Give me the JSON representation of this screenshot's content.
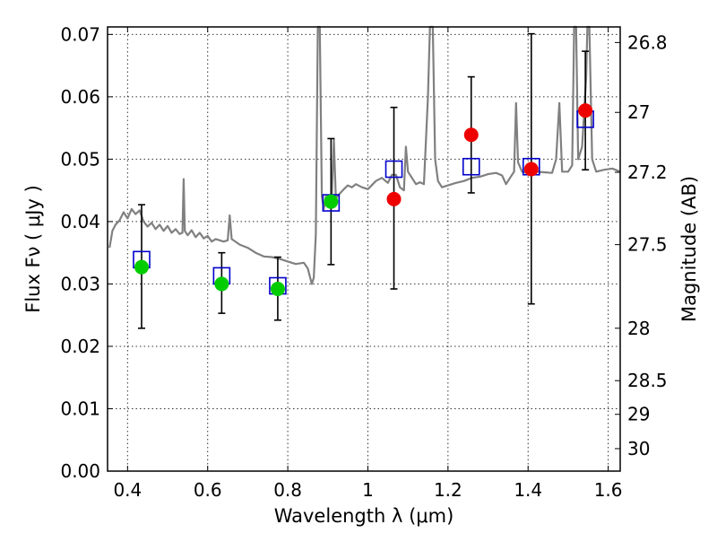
{
  "chart_data": {
    "type": "scatter",
    "title": "",
    "xlabel": "Wavelength  λ (μm)",
    "ylabel": "Flux  Fν  ( μJy )",
    "ylabel_right": "Magnitude (AB)",
    "xlim": [
      0.35,
      1.63
    ],
    "ylim": [
      0.0,
      0.0712
    ],
    "grid": true,
    "x_ticks": [
      0.4,
      0.6,
      0.8,
      1.0,
      1.2,
      1.4,
      1.6
    ],
    "x_tick_labels": [
      "0.4",
      "0.6",
      "0.8",
      "1",
      "1.2",
      "1.4",
      "1.6"
    ],
    "y_ticks": [
      0.0,
      0.01,
      0.02,
      0.03,
      0.04,
      0.05,
      0.06,
      0.07
    ],
    "y_tick_labels": [
      "0.00",
      "0.01",
      "0.02",
      "0.03",
      "0.04",
      "0.05",
      "0.06",
      "0.07"
    ],
    "right_axis_ticks": [
      {
        "label": "26.8",
        "flux": 0.0687
      },
      {
        "label": "27",
        "flux": 0.0575
      },
      {
        "label": "27.2",
        "flux": 0.0479
      },
      {
        "label": "27.5",
        "flux": 0.0363
      },
      {
        "label": "28",
        "flux": 0.0229
      },
      {
        "label": "28.5",
        "flux": 0.0145
      },
      {
        "label": "29",
        "flux": 0.0091
      },
      {
        "label": "30",
        "flux": 0.0036
      }
    ],
    "series": [
      {
        "marker": "open-square",
        "color": "#0000cc",
        "points": [
          {
            "x": 0.435,
            "y": 0.0339
          },
          {
            "x": 0.635,
            "y": 0.0313
          },
          {
            "x": 0.775,
            "y": 0.0297
          },
          {
            "x": 0.908,
            "y": 0.043
          },
          {
            "x": 1.065,
            "y": 0.0484
          },
          {
            "x": 1.258,
            "y": 0.0488
          },
          {
            "x": 1.408,
            "y": 0.0488
          },
          {
            "x": 1.543,
            "y": 0.0564
          }
        ]
      },
      {
        "marker": "filled-circle",
        "color": "#00cc00",
        "points": [
          {
            "x": 0.435,
            "y": 0.0327,
            "lo": 0.0229,
            "hi": 0.0427
          },
          {
            "x": 0.635,
            "y": 0.03,
            "lo": 0.0253,
            "hi": 0.035
          },
          {
            "x": 0.775,
            "y": 0.0292,
            "lo": 0.0242,
            "hi": 0.0343
          },
          {
            "x": 0.908,
            "y": 0.0432,
            "lo": 0.0331,
            "hi": 0.0533
          }
        ]
      },
      {
        "marker": "filled-circle",
        "color": "#ee0000",
        "points": [
          {
            "x": 1.065,
            "y": 0.0436,
            "lo": 0.0292,
            "hi": 0.0583
          },
          {
            "x": 1.258,
            "y": 0.0539,
            "lo": 0.0446,
            "hi": 0.0632
          },
          {
            "x": 1.408,
            "y": 0.0484,
            "lo": 0.0268,
            "hi": 0.0701
          },
          {
            "x": 1.543,
            "y": 0.0578,
            "lo": 0.0483,
            "hi": 0.0673
          }
        ]
      },
      {
        "marker": "line",
        "color": "#808080",
        "points": [
          {
            "x": 0.355,
            "y": 0.0358
          },
          {
            "x": 0.362,
            "y": 0.0385
          },
          {
            "x": 0.37,
            "y": 0.0395
          },
          {
            "x": 0.38,
            "y": 0.0402
          },
          {
            "x": 0.39,
            "y": 0.0415
          },
          {
            "x": 0.4,
            "y": 0.0405
          },
          {
            "x": 0.41,
            "y": 0.042
          },
          {
            "x": 0.42,
            "y": 0.0412
          },
          {
            "x": 0.43,
            "y": 0.0418
          },
          {
            "x": 0.44,
            "y": 0.04
          },
          {
            "x": 0.45,
            "y": 0.0392
          },
          {
            "x": 0.46,
            "y": 0.0398
          },
          {
            "x": 0.47,
            "y": 0.0388
          },
          {
            "x": 0.48,
            "y": 0.0395
          },
          {
            "x": 0.49,
            "y": 0.0385
          },
          {
            "x": 0.5,
            "y": 0.0393
          },
          {
            "x": 0.51,
            "y": 0.0382
          },
          {
            "x": 0.52,
            "y": 0.0388
          },
          {
            "x": 0.53,
            "y": 0.038
          },
          {
            "x": 0.537,
            "y": 0.0382
          },
          {
            "x": 0.54,
            "y": 0.0468
          },
          {
            "x": 0.543,
            "y": 0.0385
          },
          {
            "x": 0.55,
            "y": 0.0378
          },
          {
            "x": 0.56,
            "y": 0.0386
          },
          {
            "x": 0.57,
            "y": 0.0375
          },
          {
            "x": 0.58,
            "y": 0.0382
          },
          {
            "x": 0.59,
            "y": 0.0373
          },
          {
            "x": 0.6,
            "y": 0.0377
          },
          {
            "x": 0.61,
            "y": 0.0368
          },
          {
            "x": 0.62,
            "y": 0.0372
          },
          {
            "x": 0.63,
            "y": 0.037
          },
          {
            "x": 0.64,
            "y": 0.0368
          },
          {
            "x": 0.65,
            "y": 0.037
          },
          {
            "x": 0.655,
            "y": 0.041
          },
          {
            "x": 0.66,
            "y": 0.0372
          },
          {
            "x": 0.68,
            "y": 0.0363
          },
          {
            "x": 0.7,
            "y": 0.0358
          },
          {
            "x": 0.72,
            "y": 0.035
          },
          {
            "x": 0.74,
            "y": 0.0344
          },
          {
            "x": 0.76,
            "y": 0.0343
          },
          {
            "x": 0.78,
            "y": 0.034
          },
          {
            "x": 0.8,
            "y": 0.0336
          },
          {
            "x": 0.82,
            "y": 0.0332
          },
          {
            "x": 0.84,
            "y": 0.0334
          },
          {
            "x": 0.85,
            "y": 0.0325
          },
          {
            "x": 0.86,
            "y": 0.03
          },
          {
            "x": 0.865,
            "y": 0.031
          },
          {
            "x": 0.87,
            "y": 0.038
          },
          {
            "x": 0.875,
            "y": 0.0712
          },
          {
            "x": 0.88,
            "y": 0.0712
          },
          {
            "x": 0.885,
            "y": 0.044
          },
          {
            "x": 0.89,
            "y": 0.042
          },
          {
            "x": 0.895,
            "y": 0.044
          },
          {
            "x": 0.9,
            "y": 0.043
          },
          {
            "x": 0.905,
            "y": 0.0433
          },
          {
            "x": 0.91,
            "y": 0.044
          },
          {
            "x": 0.915,
            "y": 0.0532
          },
          {
            "x": 0.92,
            "y": 0.0438
          },
          {
            "x": 0.93,
            "y": 0.0445
          },
          {
            "x": 0.94,
            "y": 0.0452
          },
          {
            "x": 0.95,
            "y": 0.0458
          },
          {
            "x": 0.96,
            "y": 0.0455
          },
          {
            "x": 0.97,
            "y": 0.046
          },
          {
            "x": 0.985,
            "y": 0.0455
          },
          {
            "x": 1.0,
            "y": 0.0452
          },
          {
            "x": 1.02,
            "y": 0.0465
          },
          {
            "x": 1.035,
            "y": 0.047
          },
          {
            "x": 1.05,
            "y": 0.0462
          },
          {
            "x": 1.06,
            "y": 0.0475
          },
          {
            "x": 1.07,
            "y": 0.0475
          },
          {
            "x": 1.08,
            "y": 0.0455
          },
          {
            "x": 1.09,
            "y": 0.045
          },
          {
            "x": 1.095,
            "y": 0.052
          },
          {
            "x": 1.1,
            "y": 0.048
          },
          {
            "x": 1.11,
            "y": 0.047
          },
          {
            "x": 1.12,
            "y": 0.046
          },
          {
            "x": 1.13,
            "y": 0.0463
          },
          {
            "x": 1.14,
            "y": 0.046
          },
          {
            "x": 1.15,
            "y": 0.06
          },
          {
            "x": 1.155,
            "y": 0.0712
          },
          {
            "x": 1.162,
            "y": 0.0712
          },
          {
            "x": 1.168,
            "y": 0.05
          },
          {
            "x": 1.175,
            "y": 0.0465
          },
          {
            "x": 1.185,
            "y": 0.0455
          },
          {
            "x": 1.2,
            "y": 0.0458
          },
          {
            "x": 1.22,
            "y": 0.0462
          },
          {
            "x": 1.24,
            "y": 0.0465
          },
          {
            "x": 1.26,
            "y": 0.047
          },
          {
            "x": 1.28,
            "y": 0.0472
          },
          {
            "x": 1.3,
            "y": 0.0476
          },
          {
            "x": 1.32,
            "y": 0.0478
          },
          {
            "x": 1.335,
            "y": 0.0474
          },
          {
            "x": 1.345,
            "y": 0.046
          },
          {
            "x": 1.355,
            "y": 0.047
          },
          {
            "x": 1.365,
            "y": 0.048
          },
          {
            "x": 1.37,
            "y": 0.059
          },
          {
            "x": 1.375,
            "y": 0.0495
          },
          {
            "x": 1.385,
            "y": 0.048
          },
          {
            "x": 1.4,
            "y": 0.0478
          },
          {
            "x": 1.42,
            "y": 0.048
          },
          {
            "x": 1.44,
            "y": 0.0479
          },
          {
            "x": 1.46,
            "y": 0.0478
          },
          {
            "x": 1.47,
            "y": 0.05
          },
          {
            "x": 1.478,
            "y": 0.059
          },
          {
            "x": 1.485,
            "y": 0.048
          },
          {
            "x": 1.5,
            "y": 0.048
          },
          {
            "x": 1.51,
            "y": 0.049
          },
          {
            "x": 1.515,
            "y": 0.0712
          },
          {
            "x": 1.52,
            "y": 0.0712
          },
          {
            "x": 1.525,
            "y": 0.05
          },
          {
            "x": 1.535,
            "y": 0.052
          },
          {
            "x": 1.545,
            "y": 0.063
          },
          {
            "x": 1.548,
            "y": 0.0712
          },
          {
            "x": 1.553,
            "y": 0.0712
          },
          {
            "x": 1.56,
            "y": 0.05
          },
          {
            "x": 1.57,
            "y": 0.048
          },
          {
            "x": 1.59,
            "y": 0.0483
          },
          {
            "x": 1.61,
            "y": 0.0485
          },
          {
            "x": 1.63,
            "y": 0.048
          }
        ]
      }
    ]
  }
}
